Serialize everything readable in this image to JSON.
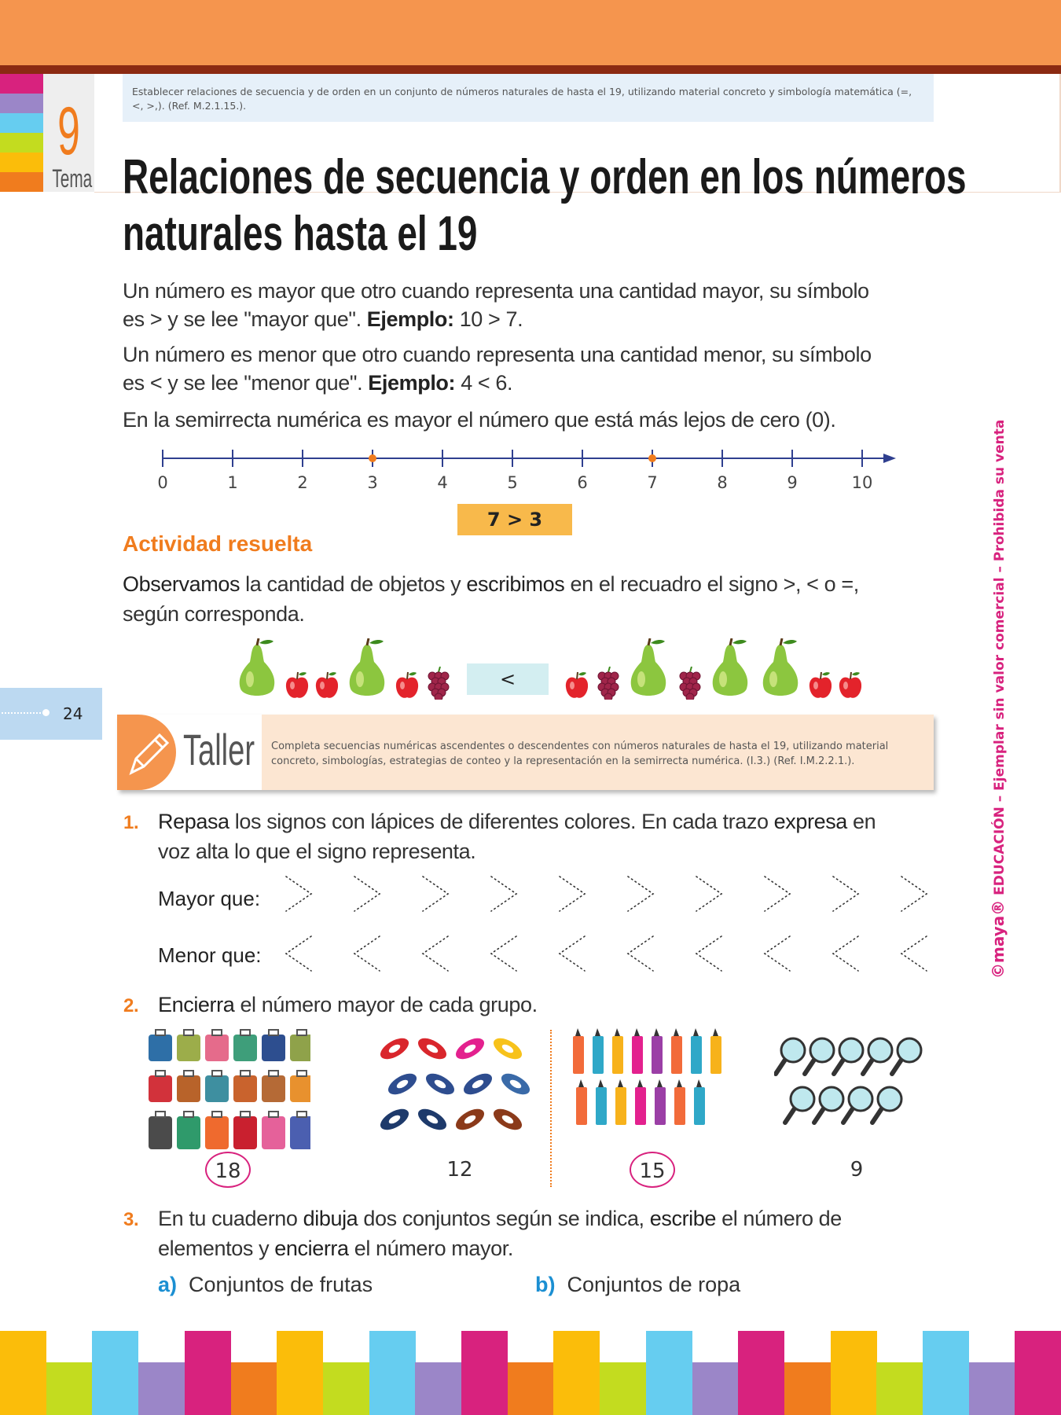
{
  "header": {
    "objective": "Establecer relaciones de secuencia y de orden en un conjunto de números naturales de hasta el 19, utilizando material concreto y simbología matemática (=, <, >,). (Ref. M.2.1.15.).",
    "tema_number": "9",
    "tema_label": "Tema",
    "strip_colors": [
      "#d8227e",
      "#9b86c8",
      "#66cdf0",
      "#c3dc1f",
      "#fbbd0a",
      "#f07c1e"
    ]
  },
  "title": {
    "line1": "Relaciones de secuencia y orden en los números",
    "line2": "naturales hasta el 19"
  },
  "intro": {
    "p1a": "Un número es mayor que otro cuando representa una cantidad mayor, su símbolo",
    "p1b": "es > y se lee \"mayor que\". ",
    "p1_ex_label": "Ejemplo:",
    "p1_ex": " 10 > 7.",
    "p2a": "Un número es menor que otro cuando representa una cantidad menor, su símbolo",
    "p2b": "es < y se lee \"menor que\". ",
    "p2_ex_label": "Ejemplo:",
    "p2_ex": " 4 < 6.",
    "p3": "En la semirrecta numérica es mayor el número que está más lejos de cero (0)."
  },
  "number_line": {
    "ticks": [
      "0",
      "1",
      "2",
      "3",
      "4",
      "5",
      "6",
      "7",
      "8",
      "9",
      "10"
    ],
    "marked": [
      3,
      7
    ],
    "comparison": "7  >  3",
    "line_color": "#2f3f8f",
    "marker_color": "#f07c1e"
  },
  "activity": {
    "heading": "Actividad resuelta",
    "text_a_bold": "Observamos",
    "text_a": " la cantidad de objetos y ",
    "text_b_bold": "escribimos",
    "text_c": " en el recuadro el signo >, < o =,",
    "text_d": "según corresponda.",
    "left_set": [
      "pear",
      "apple",
      "apple",
      "pear",
      "apple",
      "grapes"
    ],
    "sign": "<",
    "right_set": [
      "apple",
      "grapes",
      "pear",
      "grapes",
      "pear",
      "pear",
      "apple",
      "apple"
    ]
  },
  "page_number": "24",
  "taller": {
    "label": "Taller",
    "text": "Completa secuencias numéricas ascendentes o descendentes con números naturales de hasta el 19, utilizando material concreto, simbologías, estrategias de conteo y la representación en la semirrecta numérica. (I.3.) (Ref. I.M.2.2.1.)."
  },
  "exercise1": {
    "number": "1.",
    "bold1": "Repasa",
    "t1": " los signos con lápices de diferentes colores. En cada trazo ",
    "bold2": "expresa",
    "t2": " en",
    "t3": "voz alta lo que el signo representa.",
    "greater_label": "Mayor que:",
    "less_label": "Menor que:"
  },
  "exercise2": {
    "number": "2.",
    "bold": "Encierra",
    "text": " el número mayor de cada grupo.",
    "groups": [
      {
        "item": "suitcase",
        "count": "18",
        "circled": true
      },
      {
        "item": "shoe",
        "count": "12",
        "circled": false
      },
      {
        "item": "marker",
        "count": "15",
        "circled": true
      },
      {
        "item": "magnifier",
        "count": "9",
        "circled": false
      }
    ]
  },
  "exercise3": {
    "number": "3.",
    "t1": "En tu cuaderno ",
    "b1": "dibuja",
    "t2": " dos conjuntos según se indica, ",
    "b2": "escribe",
    "t3": " el número de",
    "t4": "elementos y ",
    "b3": "encierra",
    "t5": " el número mayor.",
    "a_label": "a)",
    "a_text": "Conjuntos de frutas",
    "b_label": "b)",
    "b_text": "Conjuntos de ropa"
  },
  "side_note": {
    "brand": "©maya®",
    "text": " EDUCACIÓN – Ejemplar sin valor comercial – Prohibida su venta"
  },
  "footer_colors": [
    "#fbbd0a",
    "#c3dc1f",
    "#66cdf0",
    "#9b86c8",
    "#d8227e",
    "#f07c1e"
  ]
}
